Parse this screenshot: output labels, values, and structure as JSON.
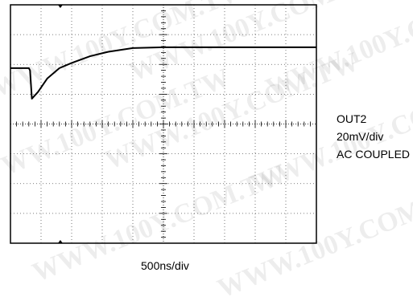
{
  "chart_data": {
    "type": "line",
    "title": "",
    "xlabel": "500ns/div",
    "ylabel": "",
    "grid": true,
    "divisions": {
      "x": 10,
      "y": 8
    },
    "xlim": [
      0,
      5000
    ],
    "ylim": [
      -80,
      80
    ],
    "x_units": "ns",
    "y_units": "mV",
    "series": [
      {
        "x": [
          0,
          300,
          320,
          350,
          450,
          600,
          800,
          1000,
          1300,
          1600,
          2000,
          2500,
          3000,
          3500,
          4000,
          4500,
          5000
        ],
        "values": [
          37.5,
          37.5,
          36,
          17,
          21.5,
          30.5,
          37.5,
          41,
          45.5,
          48.5,
          51,
          51.5,
          51.5,
          51.5,
          51.5,
          51.5,
          51.5
        ]
      }
    ]
  },
  "annotations": {
    "channel": "OUT2",
    "volts_per_div": "20mV/div",
    "coupling": "AC COUPLED"
  },
  "watermarks": [
    "WWW.100Y.COM.TW",
    "WWW.100Y.COM.TW",
    "WWW.100Y.COM.TW",
    "WWW.100Y.COM.TW",
    "WWW.100Y.COM.TW",
    "WWW.100Y.COM.TW",
    "WWW.100Y.COM.TW",
    "WWW.100Y.COM.TW"
  ]
}
